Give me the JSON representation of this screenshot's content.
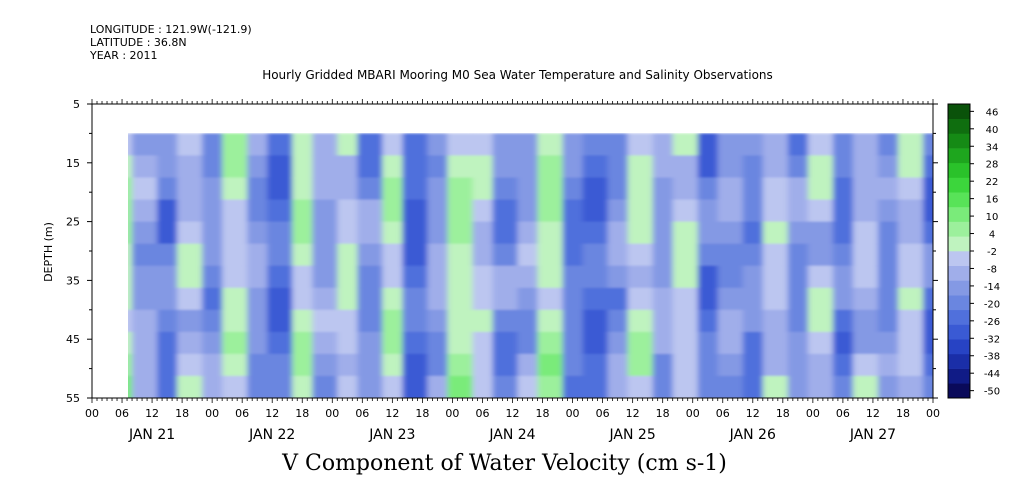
{
  "header": {
    "longitude": "LONGITUDE : 121.9W(-121.9)",
    "latitude": "LATITUDE : 36.8N",
    "year": "YEAR : 2011"
  },
  "chart_data": {
    "type": "heatmap",
    "title": "Hourly Gridded MBARI Mooring M0 Sea Water Temperature and Salinity Observations",
    "xlabel": "V Component of Water Velocity (cm s-1)",
    "ylabel": "DEPTH (m)",
    "ylim": [
      55,
      5
    ],
    "y_ticks": [
      5,
      15,
      25,
      35,
      45,
      55
    ],
    "x_hour_ticks": [
      "00",
      "06",
      "12",
      "18",
      "00",
      "06",
      "12",
      "18",
      "00",
      "06",
      "12",
      "18",
      "00",
      "06",
      "12",
      "18",
      "00",
      "06",
      "12",
      "18",
      "00",
      "06",
      "12",
      "18",
      "00",
      "06",
      "12",
      "18",
      "00"
    ],
    "x_day_labels": [
      "JAN 21",
      "JAN 22",
      "JAN 23",
      "JAN 24",
      "JAN 25",
      "JAN 26",
      "JAN 27"
    ],
    "data_start_hour": 6,
    "data_depth_range": [
      10,
      55
    ],
    "colorbar": {
      "levels": [
        -50,
        -44,
        -38,
        -32,
        -26,
        -20,
        -14,
        -8,
        -2,
        4,
        10,
        16,
        22,
        28,
        34,
        40,
        46
      ],
      "colors_neg": [
        "#0a0a5a",
        "#101b86",
        "#1a2ea8",
        "#2743c4",
        "#3a5ad4",
        "#5070dc",
        "#6a86e0",
        "#8499e4",
        "#a0aeea",
        "#bcc6f0"
      ],
      "colors_pos": [
        "#bff3bf",
        "#9cf09c",
        "#7aeb7a",
        "#58e358",
        "#3cd63c",
        "#2ac22a",
        "#1ea61e",
        "#158a15",
        "#0f6e0f",
        "#0a520a"
      ]
    },
    "columns": [
      {
        "t": 6,
        "v": -9
      },
      {
        "t": 9,
        "v": 4
      },
      {
        "t": 14,
        "v": -15
      },
      {
        "t": 20,
        "v": -6
      },
      {
        "t": 25,
        "v": 10
      },
      {
        "t": 29,
        "v": -4
      },
      {
        "t": 34,
        "v": 12
      },
      {
        "t": 38,
        "v": 5
      },
      {
        "t": 43,
        "v": -10
      },
      {
        "t": 47,
        "v": 2
      },
      {
        "t": 52,
        "v": 14
      },
      {
        "t": 56,
        "v": -3
      },
      {
        "t": 61,
        "v": -13
      },
      {
        "t": 65,
        "v": 6
      },
      {
        "t": 70,
        "v": -8
      },
      {
        "t": 74,
        "v": 11
      },
      {
        "t": 79,
        "v": -5
      },
      {
        "t": 83,
        "v": -16
      },
      {
        "t": 88,
        "v": 13
      },
      {
        "t": 92,
        "v": -2
      },
      {
        "t": 97,
        "v": 8
      },
      {
        "t": 101,
        "v": -7
      },
      {
        "t": 106,
        "v": 12
      },
      {
        "t": 110,
        "v": -18
      },
      {
        "t": 115,
        "v": -4
      },
      {
        "t": 119,
        "v": 15
      },
      {
        "t": 124,
        "v": 6
      },
      {
        "t": 128,
        "v": -9
      },
      {
        "t": 133,
        "v": -3
      },
      {
        "t": 137,
        "v": 14
      },
      {
        "t": 142,
        "v": -12
      },
      {
        "t": 146,
        "v": -17
      },
      {
        "t": 151,
        "v": -6
      },
      {
        "t": 155,
        "v": 10
      },
      {
        "t": 160,
        "v": -4
      },
      {
        "t": 164,
        "v": 9
      },
      {
        "t": 169,
        "v": -14
      },
      {
        "t": 173,
        "v": -5
      },
      {
        "t": 178,
        "v": -11
      },
      {
        "t": 182,
        "v": 7
      },
      {
        "t": 187,
        "v": -8
      },
      {
        "t": 191,
        "v": 5
      },
      {
        "t": 196,
        "v": -13
      },
      {
        "t": 200,
        "v": 3
      },
      {
        "t": 205,
        "v": -7
      },
      {
        "t": 209,
        "v": 6
      },
      {
        "t": 214,
        "v": -15
      },
      {
        "t": 218,
        "v": 4
      },
      {
        "t": 223,
        "v": -6
      },
      {
        "t": 227,
        "v": 8
      },
      {
        "t": 232,
        "v": -10
      },
      {
        "t": 236,
        "v": 2
      }
    ]
  }
}
